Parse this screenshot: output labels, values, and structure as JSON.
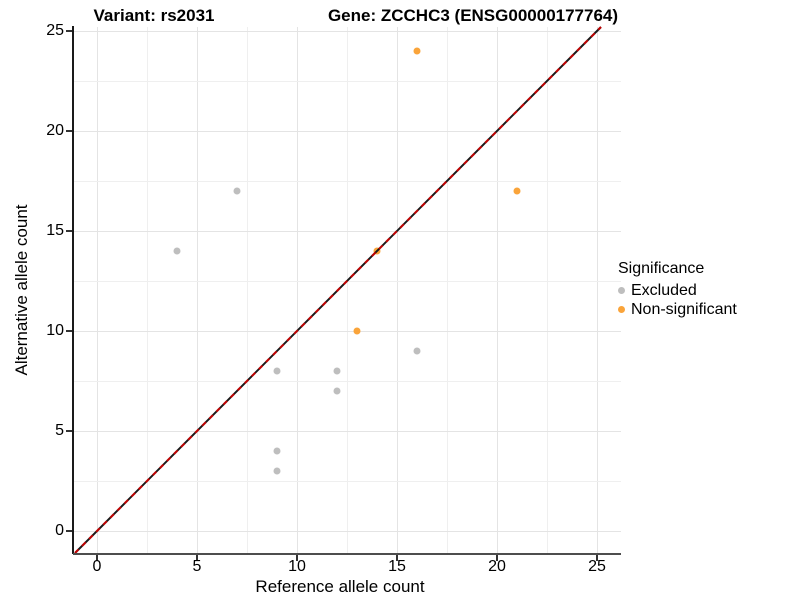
{
  "titles": {
    "left": "Variant: rs2031",
    "right": "Gene: ZCCHC3 (ENSG00000177764)"
  },
  "chart_data": {
    "type": "scatter",
    "xlabel": "Reference allele count",
    "ylabel": "Alternative allele count",
    "xlim": [
      -1.2,
      26.2
    ],
    "ylim": [
      -1.1,
      25.2
    ],
    "xticks": [
      0,
      5,
      10,
      15,
      20,
      25
    ],
    "yticks": [
      0,
      5,
      10,
      15,
      20,
      25
    ],
    "grid_step": 2.5,
    "grid_on": true,
    "identity_line": {
      "style": "dashed",
      "dash_color": "#c00000",
      "base_color": "#1a1a1a",
      "slope": 1,
      "intercept": 0
    },
    "series": [
      {
        "name": "Excluded",
        "color": "#bebebe",
        "points": [
          [
            7,
            17
          ],
          [
            4,
            14
          ],
          [
            16,
            9
          ],
          [
            9,
            8
          ],
          [
            12,
            8
          ],
          [
            12,
            7
          ],
          [
            9,
            4
          ],
          [
            9,
            3
          ]
        ]
      },
      {
        "name": "Non-significant",
        "color": "#faa43a",
        "points": [
          [
            16,
            24
          ],
          [
            21,
            17
          ],
          [
            14,
            14
          ],
          [
            13,
            10
          ]
        ]
      }
    ],
    "legend": {
      "title": "Significance",
      "position": "right",
      "entries": [
        {
          "label": "Excluded",
          "color": "#bebebe"
        },
        {
          "label": "Non-significant",
          "color": "#faa43a"
        }
      ]
    }
  }
}
